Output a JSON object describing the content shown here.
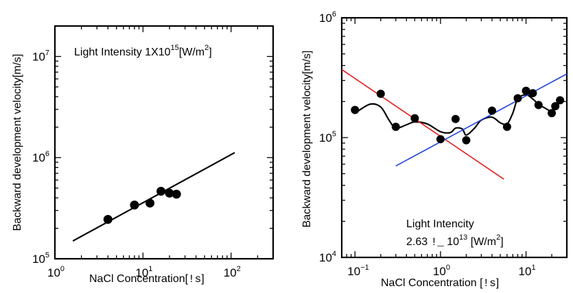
{
  "chart_data": [
    {
      "type": "scatter",
      "xscale": "log",
      "yscale": "log",
      "xlim": [
        1,
        300
      ],
      "ylim": [
        100000,
        20000000
      ],
      "xticks": [
        1,
        10,
        100
      ],
      "yticks": [
        100000,
        1000000,
        10000000
      ],
      "xlabel": {
        "main": "NaCl Concentration[",
        "mono": "!s",
        "end": "]"
      },
      "ylabel": "Backward development velocity[m/s]",
      "annotation": {
        "line1": "Light Intensity 1X10",
        "sup": "15",
        "rest": "[W/m",
        "sup2": "2",
        "end": "]"
      },
      "series": [
        {
          "marker": "circle",
          "color": "#000000",
          "x": [
            4,
            8,
            12,
            16,
            20,
            24
          ],
          "y": [
            245000,
            340000,
            355000,
            465000,
            445000,
            435000
          ]
        },
        {
          "line": "fit",
          "color": "#000000",
          "x": [
            1.6,
            110
          ],
          "y": [
            150000,
            1120000
          ]
        }
      ]
    },
    {
      "type": "scatter",
      "xscale": "log",
      "yscale": "log",
      "xlim": [
        0.07,
        30
      ],
      "ylim": [
        10000,
        1000000
      ],
      "xticks": [
        0.1,
        1,
        10
      ],
      "yticks": [
        10000,
        100000,
        1000000
      ],
      "xlabel": {
        "main": "NaCl Concentration [",
        "mono": "!s",
        "end": "]"
      },
      "ylabel": "Backward development velocity[m/s]",
      "annotation": {
        "line1": "Light Intencity",
        "line2a": "2.63 ",
        "line2mono": "!_",
        "line2b": " 10",
        "sup": "13",
        "rest": " [W/m",
        "sup2": "2",
        "end": "]"
      },
      "series": [
        {
          "marker": "circle",
          "color": "#000000",
          "x": [
            0.1,
            0.2,
            0.3,
            0.5,
            1.0,
            1.5,
            2.0,
            4.0,
            6.0,
            8.0,
            10.0,
            12.0,
            14.0,
            20.0,
            22.0,
            25.0
          ],
          "y": [
            170000,
            232000,
            123000,
            145000,
            97000,
            143000,
            95000,
            168000,
            123000,
            213000,
            246000,
            235000,
            187000,
            160000,
            183000,
            205000
          ]
        },
        {
          "line": "smooth",
          "color": "#000000",
          "x": [
            0.1,
            0.15,
            0.2,
            0.25,
            0.3,
            0.4,
            0.5,
            0.7,
            1.0,
            1.3,
            1.5,
            1.8,
            2.0,
            2.5,
            3.0,
            4.0,
            5.0,
            6.0,
            7.0,
            8.0,
            10.0,
            12.0,
            14.0,
            17.0,
            20.0,
            22.0,
            25.0
          ],
          "y": [
            160000,
            190000,
            180000,
            140000,
            120000,
            128000,
            135000,
            130000,
            112000,
            110000,
            120000,
            118000,
            105000,
            120000,
            140000,
            148000,
            133000,
            130000,
            160000,
            210000,
            228000,
            210000,
            190000,
            175000,
            165000,
            180000,
            202000
          ]
        },
        {
          "line": "fit",
          "color": "#e31a1c",
          "x": [
            0.07,
            5.5
          ],
          "y": [
            370000,
            45000
          ]
        },
        {
          "line": "fit",
          "color": "#1f3fe0",
          "x": [
            0.3,
            30
          ],
          "y": [
            58000,
            340000
          ]
        }
      ]
    }
  ]
}
